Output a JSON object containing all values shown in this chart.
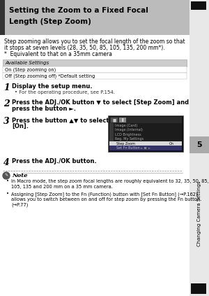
{
  "page_bg": "#e8e8e8",
  "content_bg": "#ffffff",
  "header_bg": "#bbbbbb",
  "header_text_line1": "Setting the Zoom to a Fixed Focal",
  "header_text_line2": "Length (Step Zoom)",
  "header_text_color": "#000000",
  "header_left_bar_color": "#333333",
  "intro_lines": [
    "Step zooming allows you to set the focal length of the zoom so that",
    "it stops at seven levels (28, 35, 50, 85, 105, 135, 200 mm*).",
    "*  Equivalent to that on a 35mm camera"
  ],
  "available_settings_label": "Available Settings",
  "available_settings_bg": "#cccccc",
  "settings_rows": [
    "On (Step zooming on)",
    "Off (Step zooming off) *Default setting"
  ],
  "steps": [
    {
      "num": "1",
      "text": "Display the setup menu.",
      "sub": "• For the operating procedure, see P.154.",
      "has_image": false
    },
    {
      "num": "2",
      "text": "Press the ADJ./OK button ▼ to select [Step Zoom] and\npress the button ►.",
      "sub": "",
      "has_image": false
    },
    {
      "num": "3",
      "text": "Press the button ▲▼ to select\n[On].",
      "sub": "",
      "has_image": true
    },
    {
      "num": "4",
      "text": "Press the ADJ./OK button.",
      "sub": "",
      "has_image": false
    }
  ],
  "note_title": "Note",
  "note_bullets": [
    "In Macro mode, the step zoom focal lengths are roughly equivalent to 32, 35, 50, 85,\n105, 135 and 200 mm on a 35 mm camera.",
    "Assigning [Step Zoom] to the Fn (Function) button with [Set Fn Button] (→P.162)\nallows you to switch between on and off for step zoom by pressing the Fn button.\n(→P.77)"
  ],
  "sidebar_number": "5",
  "sidebar_text": "Changing Camera Settings",
  "sidebar_bg": "#aaaaaa",
  "black_square_color": "#111111",
  "screen_bg": "#1c1c1c",
  "screen_menu_items": [
    "Image (Card)",
    "Image (Internal)",
    "LCD Brightness",
    "Reg. My Settings",
    "Step Zoom",
    "Set Fn Button"
  ],
  "screen_highlight_row": 4,
  "screen_active_value": "On"
}
